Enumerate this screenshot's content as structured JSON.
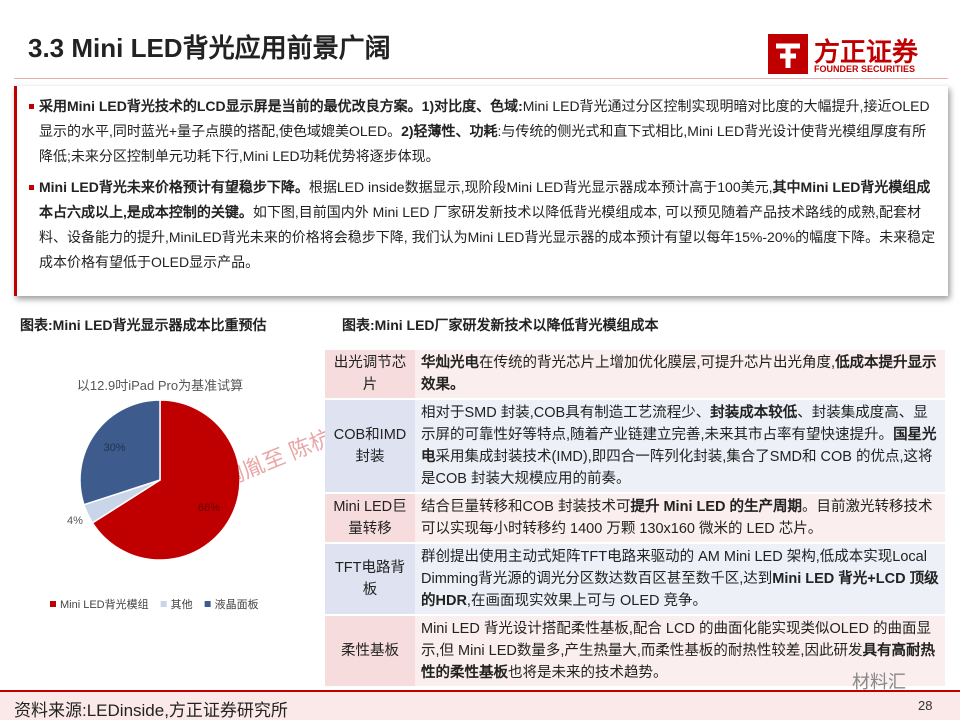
{
  "header": {
    "title": "3.3 Mini LED背光应用前景广阔",
    "logo": "方正证券",
    "logo_sub": "FOUNDER SECURITIES"
  },
  "bullets": [
    [
      {
        "text": "采用Mini  LED背光技术的LCD显示屏是当前的最优改良方案。1)对比度、色域:",
        "bold": true
      },
      {
        "text": "Mini  LED背光通过分区控制实现明暗对比度的大幅提升,接近OLED 显示的水平,同时蓝光+量子点膜的搭配,使色域媲美OLED。",
        "bold": false
      },
      {
        "text": "2)轻薄性、功耗",
        "bold": true
      },
      {
        "text": ":与传统的侧光式和直下式相比,Mini LED背光设计使背光模组厚度有所降低;未来分区控制单元功耗下行,Mini LED功耗优势将逐步体现。",
        "bold": false
      }
    ],
    [
      {
        "text": "Mini  LED背光未来价格预计有望稳步下降。",
        "bold": true
      },
      {
        "text": "根据LED  inside数据显示,现阶段Mini  LED背光显示器成本预计高于100美元,",
        "bold": false
      },
      {
        "text": "其中Mini  LED背光模组成本占六成以上,是成本控制的关键。",
        "bold": true
      },
      {
        "text": "如下图,目前国内外  Mini  LED  厂家研发新技术以降低背光模组成本,  可以预见随着产品技术路线的成熟,配套材料、设备能力的提升,MiniLED背光未来的价格将会稳步下降,  我们认为Mini LED背光显示器的成本预计有望以每年15%-20%的幅度下降。未来稳定成本价格有望低于OLED显示产品。",
        "bold": false
      }
    ]
  ],
  "captions": [
    "图表:Mini LED背光显示器成本比重预估",
    "图表:Mini LED厂家研发新技术以降低背光模组成本"
  ],
  "chart_data": {
    "type": "pie",
    "subtitle": "以12.9吋iPad Pro为基准试算",
    "categories": [
      "Mini LED背光模组",
      "其他",
      "液晶面板"
    ],
    "values": [
      66,
      4,
      30
    ],
    "value_labels": [
      "66%",
      "4%",
      "30%"
    ],
    "colors": [
      "#c00000",
      "#c9d5e8",
      "#3d5b8c"
    ]
  },
  "watermark": "方正:陶胤至 陈杭",
  "table": {
    "rows": [
      {
        "label": "出光调节芯片",
        "runs": [
          {
            "text": "华灿光电",
            "bold": true
          },
          {
            "text": "在传统的背光芯片上增加优化膜层,可提升芯片出光角度,",
            "bold": false
          },
          {
            "text": "低成本提升显示效果。",
            "bold": true
          }
        ]
      },
      {
        "label": "COB和IMD封装",
        "runs": [
          {
            "text": "相对于SMD 封装,COB具有制造工艺流程少、",
            "bold": false
          },
          {
            "text": "封装成本较低",
            "bold": true
          },
          {
            "text": "、封装集成度高、显示屏的可靠性好等特点,随着产业链建立完善,未来其市占率有望快速提升。",
            "bold": false
          },
          {
            "text": "国星光电",
            "bold": true
          },
          {
            "text": "采用集成封装技术(IMD),即四合一阵列化封装,集合了SMD和 COB 的优点,这将是COB 封装大规模应用的前奏。",
            "bold": false
          }
        ]
      },
      {
        "label": "Mini LED巨量转移",
        "runs": [
          {
            "text": "结合巨量转移和COB 封装技术可",
            "bold": false
          },
          {
            "text": "提升 Mini LED 的生产周期",
            "bold": true
          },
          {
            "text": "。目前激光转移技术可以实现每小时转移约 1400 万颗 130x160 微米的 LED 芯片。",
            "bold": false
          }
        ]
      },
      {
        "label": "TFT电路背板",
        "runs": [
          {
            "text": "群创提出使用主动式矩阵TFT电路来驱动的 AM Mini LED 架构,低成本实现Local Dimming背光源的调光分区数达数百区甚至数千区,达到",
            "bold": false
          },
          {
            "text": "Mini LED 背光+LCD 顶级的HDR",
            "bold": true
          },
          {
            "text": ",在画面现实效果上可与 OLED 竞争。",
            "bold": false
          }
        ]
      },
      {
        "label": "柔性基板",
        "runs": [
          {
            "text": "Mini LED 背光设计搭配柔性基板,配合 LCD 的曲面化能实现类似OLED 的曲面显示,但 Mini LED数量多,产生热量大,而柔性基板的耐热性较差,因此研发",
            "bold": false
          },
          {
            "text": "具有高耐热性的柔性基板",
            "bold": true
          },
          {
            "text": "也将是未来的技术趋势。",
            "bold": false
          }
        ]
      }
    ]
  },
  "footer": {
    "source": "资料来源:LEDinside,方正证券研究所",
    "page": "28",
    "brand": "材料汇"
  }
}
